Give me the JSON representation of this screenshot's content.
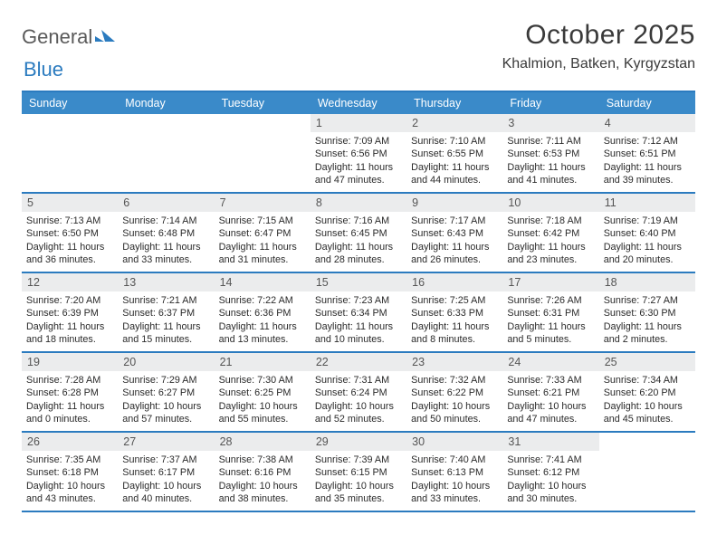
{
  "brand": {
    "word1": "General",
    "word2": "Blue"
  },
  "title": "October 2025",
  "location": "Khalmion, Batken, Kyrgyzstan",
  "colors": {
    "header_bg": "#3a8ac9",
    "rule": "#2b7bbf",
    "daynum_bg": "#ebeced",
    "text": "#2a2a2a"
  },
  "daynames": [
    "Sunday",
    "Monday",
    "Tuesday",
    "Wednesday",
    "Thursday",
    "Friday",
    "Saturday"
  ],
  "lead_blanks": 3,
  "days": [
    {
      "n": "1",
      "sunrise": "7:09 AM",
      "sunset": "6:56 PM",
      "day_h": "11",
      "day_m": "47"
    },
    {
      "n": "2",
      "sunrise": "7:10 AM",
      "sunset": "6:55 PM",
      "day_h": "11",
      "day_m": "44"
    },
    {
      "n": "3",
      "sunrise": "7:11 AM",
      "sunset": "6:53 PM",
      "day_h": "11",
      "day_m": "41"
    },
    {
      "n": "4",
      "sunrise": "7:12 AM",
      "sunset": "6:51 PM",
      "day_h": "11",
      "day_m": "39"
    },
    {
      "n": "5",
      "sunrise": "7:13 AM",
      "sunset": "6:50 PM",
      "day_h": "11",
      "day_m": "36"
    },
    {
      "n": "6",
      "sunrise": "7:14 AM",
      "sunset": "6:48 PM",
      "day_h": "11",
      "day_m": "33"
    },
    {
      "n": "7",
      "sunrise": "7:15 AM",
      "sunset": "6:47 PM",
      "day_h": "11",
      "day_m": "31"
    },
    {
      "n": "8",
      "sunrise": "7:16 AM",
      "sunset": "6:45 PM",
      "day_h": "11",
      "day_m": "28"
    },
    {
      "n": "9",
      "sunrise": "7:17 AM",
      "sunset": "6:43 PM",
      "day_h": "11",
      "day_m": "26"
    },
    {
      "n": "10",
      "sunrise": "7:18 AM",
      "sunset": "6:42 PM",
      "day_h": "11",
      "day_m": "23"
    },
    {
      "n": "11",
      "sunrise": "7:19 AM",
      "sunset": "6:40 PM",
      "day_h": "11",
      "day_m": "20"
    },
    {
      "n": "12",
      "sunrise": "7:20 AM",
      "sunset": "6:39 PM",
      "day_h": "11",
      "day_m": "18"
    },
    {
      "n": "13",
      "sunrise": "7:21 AM",
      "sunset": "6:37 PM",
      "day_h": "11",
      "day_m": "15"
    },
    {
      "n": "14",
      "sunrise": "7:22 AM",
      "sunset": "6:36 PM",
      "day_h": "11",
      "day_m": "13"
    },
    {
      "n": "15",
      "sunrise": "7:23 AM",
      "sunset": "6:34 PM",
      "day_h": "11",
      "day_m": "10"
    },
    {
      "n": "16",
      "sunrise": "7:25 AM",
      "sunset": "6:33 PM",
      "day_h": "11",
      "day_m": "8"
    },
    {
      "n": "17",
      "sunrise": "7:26 AM",
      "sunset": "6:31 PM",
      "day_h": "11",
      "day_m": "5"
    },
    {
      "n": "18",
      "sunrise": "7:27 AM",
      "sunset": "6:30 PM",
      "day_h": "11",
      "day_m": "2"
    },
    {
      "n": "19",
      "sunrise": "7:28 AM",
      "sunset": "6:28 PM",
      "day_h": "11",
      "day_m": "0"
    },
    {
      "n": "20",
      "sunrise": "7:29 AM",
      "sunset": "6:27 PM",
      "day_h": "10",
      "day_m": "57"
    },
    {
      "n": "21",
      "sunrise": "7:30 AM",
      "sunset": "6:25 PM",
      "day_h": "10",
      "day_m": "55"
    },
    {
      "n": "22",
      "sunrise": "7:31 AM",
      "sunset": "6:24 PM",
      "day_h": "10",
      "day_m": "52"
    },
    {
      "n": "23",
      "sunrise": "7:32 AM",
      "sunset": "6:22 PM",
      "day_h": "10",
      "day_m": "50"
    },
    {
      "n": "24",
      "sunrise": "7:33 AM",
      "sunset": "6:21 PM",
      "day_h": "10",
      "day_m": "47"
    },
    {
      "n": "25",
      "sunrise": "7:34 AM",
      "sunset": "6:20 PM",
      "day_h": "10",
      "day_m": "45"
    },
    {
      "n": "26",
      "sunrise": "7:35 AM",
      "sunset": "6:18 PM",
      "day_h": "10",
      "day_m": "43"
    },
    {
      "n": "27",
      "sunrise": "7:37 AM",
      "sunset": "6:17 PM",
      "day_h": "10",
      "day_m": "40"
    },
    {
      "n": "28",
      "sunrise": "7:38 AM",
      "sunset": "6:16 PM",
      "day_h": "10",
      "day_m": "38"
    },
    {
      "n": "29",
      "sunrise": "7:39 AM",
      "sunset": "6:15 PM",
      "day_h": "10",
      "day_m": "35"
    },
    {
      "n": "30",
      "sunrise": "7:40 AM",
      "sunset": "6:13 PM",
      "day_h": "10",
      "day_m": "33"
    },
    {
      "n": "31",
      "sunrise": "7:41 AM",
      "sunset": "6:12 PM",
      "day_h": "10",
      "day_m": "30"
    }
  ],
  "labels": {
    "sunrise": "Sunrise:",
    "sunset": "Sunset:",
    "daylight_pre": "Daylight:",
    "hours_word": "hours",
    "and_word": "and",
    "minutes_word": "minutes."
  }
}
